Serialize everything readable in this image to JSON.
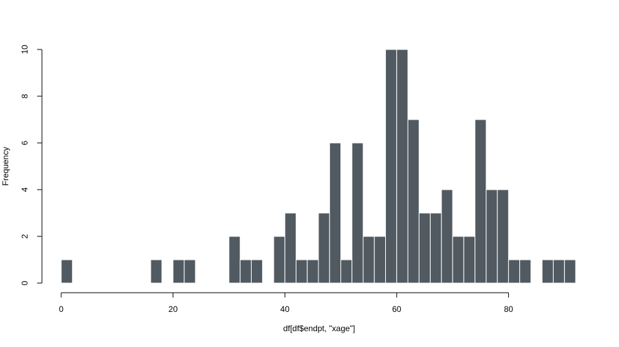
{
  "chart_data": {
    "type": "bar",
    "title": "",
    "xlabel": "df[df$endpt, \"xage\"]",
    "ylabel": "Frequency",
    "xlim": [
      0,
      92
    ],
    "ylim": [
      0,
      10
    ],
    "x_ticks": [
      0,
      20,
      40,
      60,
      80
    ],
    "x_tick_labels": [
      "0",
      "20",
      "40",
      "60",
      "80"
    ],
    "y_ticks": [
      0,
      2,
      4,
      6,
      8,
      10
    ],
    "y_tick_labels": [
      "0",
      "2",
      "4",
      "6",
      "8",
      "10"
    ],
    "bin_width": 2,
    "bins": [
      {
        "x0": 0,
        "x1": 2,
        "count": 1
      },
      {
        "x0": 16,
        "x1": 18,
        "count": 1
      },
      {
        "x0": 20,
        "x1": 22,
        "count": 1
      },
      {
        "x0": 22,
        "x1": 24,
        "count": 1
      },
      {
        "x0": 30,
        "x1": 32,
        "count": 2
      },
      {
        "x0": 32,
        "x1": 34,
        "count": 1
      },
      {
        "x0": 34,
        "x1": 36,
        "count": 1
      },
      {
        "x0": 38,
        "x1": 40,
        "count": 2
      },
      {
        "x0": 40,
        "x1": 42,
        "count": 3
      },
      {
        "x0": 42,
        "x1": 44,
        "count": 1
      },
      {
        "x0": 44,
        "x1": 46,
        "count": 1
      },
      {
        "x0": 46,
        "x1": 48,
        "count": 3
      },
      {
        "x0": 48,
        "x1": 50,
        "count": 6
      },
      {
        "x0": 50,
        "x1": 52,
        "count": 1
      },
      {
        "x0": 52,
        "x1": 54,
        "count": 6
      },
      {
        "x0": 54,
        "x1": 56,
        "count": 2
      },
      {
        "x0": 56,
        "x1": 58,
        "count": 2
      },
      {
        "x0": 58,
        "x1": 60,
        "count": 10
      },
      {
        "x0": 60,
        "x1": 62,
        "count": 10
      },
      {
        "x0": 62,
        "x1": 64,
        "count": 7
      },
      {
        "x0": 64,
        "x1": 66,
        "count": 3
      },
      {
        "x0": 66,
        "x1": 68,
        "count": 3
      },
      {
        "x0": 68,
        "x1": 70,
        "count": 4
      },
      {
        "x0": 70,
        "x1": 72,
        "count": 2
      },
      {
        "x0": 72,
        "x1": 74,
        "count": 2
      },
      {
        "x0": 74,
        "x1": 76,
        "count": 7
      },
      {
        "x0": 76,
        "x1": 78,
        "count": 4
      },
      {
        "x0": 78,
        "x1": 80,
        "count": 4
      },
      {
        "x0": 80,
        "x1": 82,
        "count": 1
      },
      {
        "x0": 82,
        "x1": 84,
        "count": 1
      },
      {
        "x0": 86,
        "x1": 88,
        "count": 1
      },
      {
        "x0": 88,
        "x1": 90,
        "count": 1
      },
      {
        "x0": 90,
        "x1": 92,
        "count": 1
      }
    ],
    "bar_color": "#515a61",
    "bar_border_color": "#ffffff",
    "axis_color": "#000000",
    "grid": false,
    "legend": "none"
  }
}
